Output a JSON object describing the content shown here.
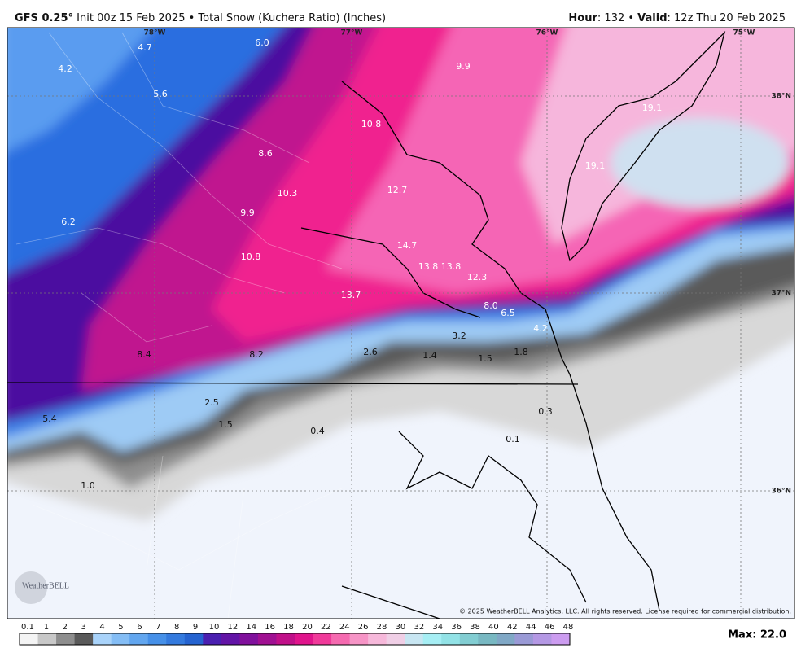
{
  "header": {
    "model": "GFS 0.25°",
    "title": "Init 00z 15 Feb 2025 • Total Snow (Kuchera Ratio) (Inches)",
    "hour_label": "Hour",
    "hour": ": 132 • ",
    "valid_label": "Valid",
    "valid": ": 12z Thu 20 Feb 2025"
  },
  "map": {
    "lon_labels": [
      "78°W",
      "77°W",
      "76°W",
      "75°W"
    ],
    "lat_labels": [
      "38°N",
      "37°N",
      "36°N"
    ],
    "snow_labels": [
      "4.7",
      "6.0",
      "4.2",
      "5.6",
      "9.9",
      "10.8",
      "19.1",
      "8.6",
      "19.1",
      "10.3",
      "12.7",
      "9.9",
      "6.2",
      "14.7",
      "10.8",
      "13.8",
      "13.8",
      "12.3",
      "13.7",
      "8.0",
      "6.5",
      "4.2",
      "3.2",
      "8.4",
      "8.2",
      "2.6",
      "1.4",
      "1.5",
      "1.8",
      "2.5",
      "0.3",
      "5.4",
      "1.5",
      "0.4",
      "0.1",
      "1.0"
    ],
    "copyright": "© 2025 WeatherBELL Analytics, LLC. All rights reserved. License required for commercial distribution.",
    "logo": "WeatherBELL"
  },
  "legend": {
    "labels": [
      0.1,
      1,
      2,
      3,
      4,
      5,
      6,
      7,
      8,
      9,
      10,
      12,
      14,
      16,
      18,
      20,
      22,
      24,
      26,
      28,
      30,
      32,
      34,
      36,
      38,
      40,
      42,
      44,
      46,
      48
    ],
    "colors": [
      "#f4f4f4",
      "#c8c8c8",
      "#8e8e8e",
      "#5a5a5a",
      "#a9d3fa",
      "#84bdf5",
      "#62a6ef",
      "#4690e8",
      "#347ade",
      "#2563d0",
      "#4a1fb0",
      "#6214a6",
      "#80109c",
      "#a01092",
      "#c01089",
      "#e0148c",
      "#f03a9a",
      "#f56ab0",
      "#f694c6",
      "#f6b8da",
      "#f0cfe6",
      "#c8e6f2",
      "#a6eef4",
      "#92e2e6",
      "#82cdd2",
      "#78b8c2",
      "#80a8c6",
      "#9a9ad6",
      "#b498e4",
      "#cc9cf0"
    ],
    "max": "Max: 22.0"
  }
}
